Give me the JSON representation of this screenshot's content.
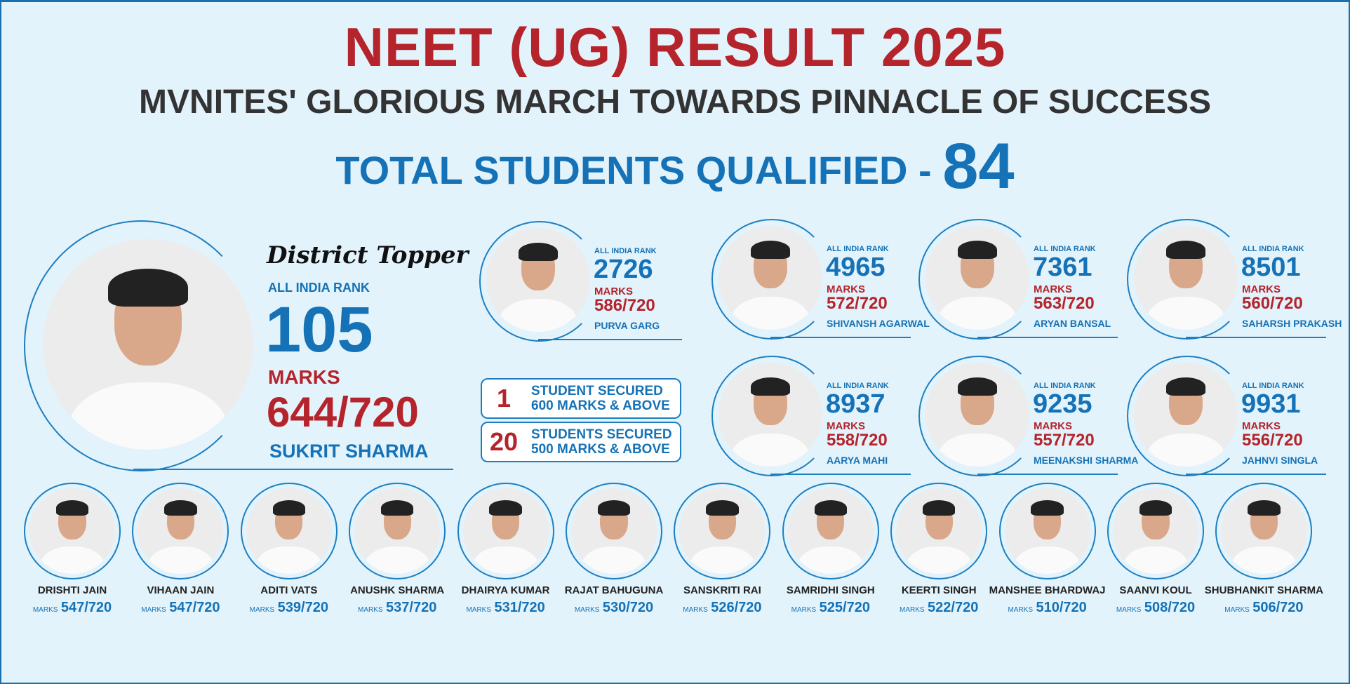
{
  "header": {
    "title": "NEET (UG) RESULT 2025",
    "subtitle": "MVNITES' GLORIOUS MARCH TOWARDS PINNACLE OF SUCCESS",
    "total_label": "TOTAL STUDENTS QUALIFIED -",
    "total_value": "84"
  },
  "colors": {
    "accent_red": "#b5232b",
    "accent_blue": "#1572b6",
    "background": "#e3f3fb"
  },
  "topper": {
    "heading": "District Topper",
    "rank_label": "ALL INDIA RANK",
    "rank": "105",
    "marks_label": "MARKS",
    "marks": "644/720",
    "name": "SUKRIT SHARMA"
  },
  "summary": [
    {
      "count": "1",
      "line1": "STUDENT SECURED",
      "line2": "600 MARKS & ABOVE"
    },
    {
      "count": "20",
      "line1": "STUDENTS SECURED",
      "line2": "500 MARKS & ABOVE"
    }
  ],
  "rankers": [
    {
      "rank_label": "ALL INDIA RANK",
      "rank": "2726",
      "marks_label": "MARKS",
      "marks": "586/720",
      "name": "PURVA GARG"
    },
    {
      "rank_label": "ALL INDIA RANK",
      "rank": "4965",
      "marks_label": "MARKS",
      "marks": "572/720",
      "name": "SHIVANSH AGARWAL"
    },
    {
      "rank_label": "ALL INDIA RANK",
      "rank": "7361",
      "marks_label": "MARKS",
      "marks": "563/720",
      "name": "ARYAN BANSAL"
    },
    {
      "rank_label": "ALL INDIA RANK",
      "rank": "8501",
      "marks_label": "MARKS",
      "marks": "560/720",
      "name": "SAHARSH PRAKASH"
    },
    {
      "rank_label": "ALL INDIA RANK",
      "rank": "8937",
      "marks_label": "MARKS",
      "marks": "558/720",
      "name": "AARYA MAHI"
    },
    {
      "rank_label": "ALL INDIA RANK",
      "rank": "9235",
      "marks_label": "MARKS",
      "marks": "557/720",
      "name": "MEENAKSHI SHARMA"
    },
    {
      "rank_label": "ALL INDIA RANK",
      "rank": "9931",
      "marks_label": "MARKS",
      "marks": "556/720",
      "name": "JAHNVI SINGLA"
    }
  ],
  "students": [
    {
      "name": "DRISHTI JAIN",
      "marks_label": "MARKS",
      "marks": "547/720"
    },
    {
      "name": "VIHAAN JAIN",
      "marks_label": "MARKS",
      "marks": "547/720"
    },
    {
      "name": "ADITI VATS",
      "marks_label": "MARKS",
      "marks": "539/720"
    },
    {
      "name": "ANUSHK SHARMA",
      "marks_label": "MARKS",
      "marks": "537/720"
    },
    {
      "name": "DHAIRYA KUMAR",
      "marks_label": "MARKS",
      "marks": "531/720"
    },
    {
      "name": "RAJAT BAHUGUNA",
      "marks_label": "MARKS",
      "marks": "530/720"
    },
    {
      "name": "SANSKRITI RAI",
      "marks_label": "MARKS",
      "marks": "526/720"
    },
    {
      "name": "SAMRIDHI SINGH",
      "marks_label": "MARKS",
      "marks": "525/720"
    },
    {
      "name": "KEERTI SINGH",
      "marks_label": "MARKS",
      "marks": "522/720"
    },
    {
      "name": "MANSHEE BHARDWAJ",
      "marks_label": "MARKS",
      "marks": "510/720"
    },
    {
      "name": "SAANVI KOUL",
      "marks_label": "MARKS",
      "marks": "508/720"
    },
    {
      "name": "SHUBHANKIT SHARMA",
      "marks_label": "MARKS",
      "marks": "506/720"
    }
  ]
}
